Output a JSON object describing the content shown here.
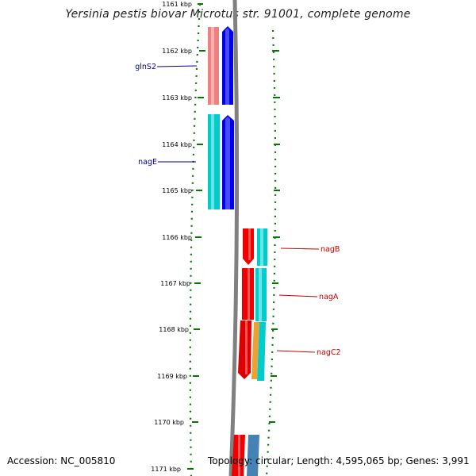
{
  "title": "Yersinia pestis biovar Microtus str. 91001, complete genome",
  "accession_text": "Accession: NC_005810",
  "topology_text": "Topology: circular; Length: 4,595,065 bp; Genes: 3,991",
  "colors": {
    "backbone": "#808080",
    "tick": "#007a00",
    "label_left": "#000099",
    "label_right": "#cc0000",
    "blue": "#0000ee",
    "cyan": "#00cccc",
    "salmon": "#f08080",
    "red": "#ee0000",
    "orange": "#f0a030",
    "steelblue": "#4682b4"
  },
  "ticks": [
    {
      "label": "1161 kbp"
    },
    {
      "label": "1162 kbp"
    },
    {
      "label": "1163 kbp"
    },
    {
      "label": "1164 kbp"
    },
    {
      "label": "1165 kbp"
    },
    {
      "label": "1166 kbp"
    },
    {
      "label": "1167 kbp"
    },
    {
      "label": "1168 kbp"
    },
    {
      "label": "1169 kbp"
    },
    {
      "label": "1170 kbp"
    },
    {
      "label": "1171 kbp"
    }
  ],
  "genes": [
    {
      "name": "glnS2",
      "strand": "forward",
      "side": "left"
    },
    {
      "name": "nagE",
      "strand": "forward",
      "side": "left"
    },
    {
      "name": "nagB",
      "strand": "reverse",
      "side": "right"
    },
    {
      "name": "nagA",
      "strand": "reverse",
      "side": "right"
    },
    {
      "name": "nagC2",
      "strand": "reverse",
      "side": "right"
    }
  ]
}
